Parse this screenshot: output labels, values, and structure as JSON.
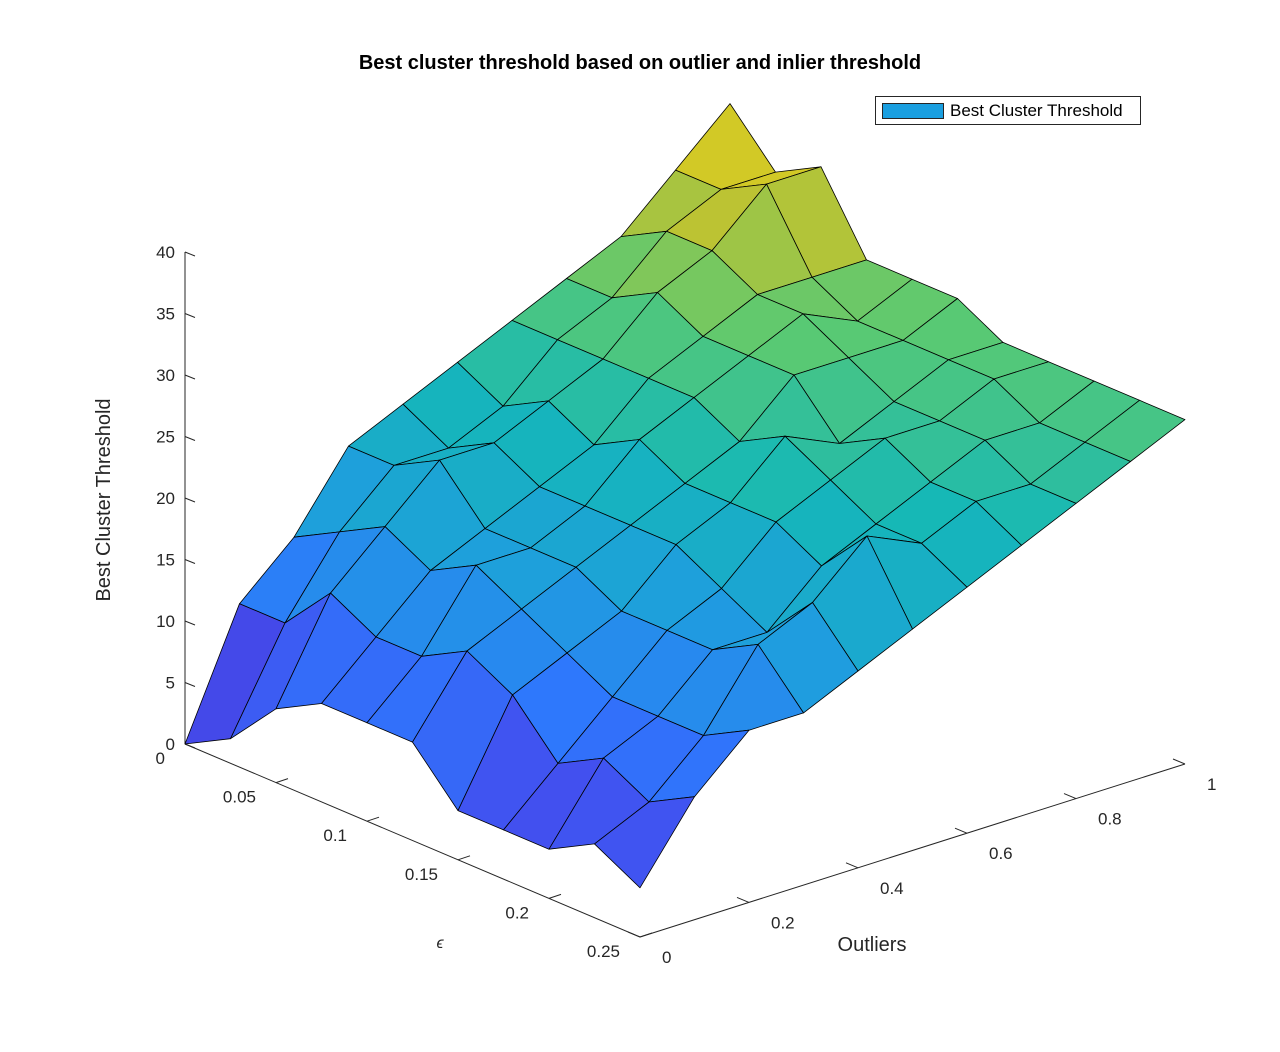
{
  "chart_data": {
    "type": "surface",
    "title": "Best cluster threshold based on outlier and inlier threshold",
    "xlabel": "Outliers",
    "ylabel": "ϵ",
    "zlabel": "Best Cluster Threshold",
    "legend": {
      "entries": [
        "Best Cluster Threshold"
      ],
      "placement": "top-right",
      "swatch_color": "#1a9fe0"
    },
    "xlim": [
      0,
      1
    ],
    "ylim": [
      0,
      0.25
    ],
    "zlim": [
      0,
      40
    ],
    "x_ticks": [
      "0",
      "0.2",
      "0.4",
      "0.6",
      "0.8",
      "1"
    ],
    "y_ticks": [
      "0",
      "0.05",
      "0.1",
      "0.15",
      "0.2",
      "0.25"
    ],
    "z_ticks": [
      "0",
      "5",
      "10",
      "15",
      "20",
      "25",
      "30",
      "35",
      "40"
    ],
    "grid": false,
    "colormap": "parula",
    "x": [
      0,
      0.1,
      0.2,
      0.3,
      0.4,
      0.5,
      0.6,
      0.7,
      0.8,
      0.9,
      1.0
    ],
    "y": [
      0,
      0.025,
      0.05,
      0.075,
      0.1,
      0.125,
      0.15,
      0.175,
      0.2,
      0.225,
      0.25
    ],
    "z": [
      [
        0,
        10,
        14,
        20,
        22,
        24,
        26,
        28,
        30,
        34,
        38
      ],
      [
        2,
        10,
        16,
        20,
        20,
        22,
        26,
        28,
        32,
        34,
        34
      ],
      [
        6,
        14,
        18,
        22,
        22,
        24,
        26,
        30,
        32,
        36,
        36
      ],
      [
        8,
        12,
        16,
        18,
        20,
        22,
        26,
        28,
        30,
        30,
        30
      ],
      [
        8,
        12,
        18,
        18,
        20,
        24,
        26,
        28,
        30,
        28,
        30
      ],
      [
        8,
        14,
        16,
        18,
        20,
        22,
        24,
        28,
        28,
        28,
        30
      ],
      [
        4,
        12,
        14,
        16,
        20,
        22,
        26,
        24,
        26,
        28,
        28
      ],
      [
        4,
        8,
        12,
        16,
        18,
        22,
        24,
        26,
        26,
        28,
        28
      ],
      [
        4,
        10,
        12,
        16,
        16,
        20,
        22,
        24,
        26,
        26,
        28
      ],
      [
        6,
        8,
        12,
        18,
        20,
        24,
        22,
        24,
        24,
        26,
        28
      ],
      [
        4,
        10,
        14,
        14,
        16,
        18,
        20,
        22,
        24,
        26,
        28
      ]
    ]
  }
}
